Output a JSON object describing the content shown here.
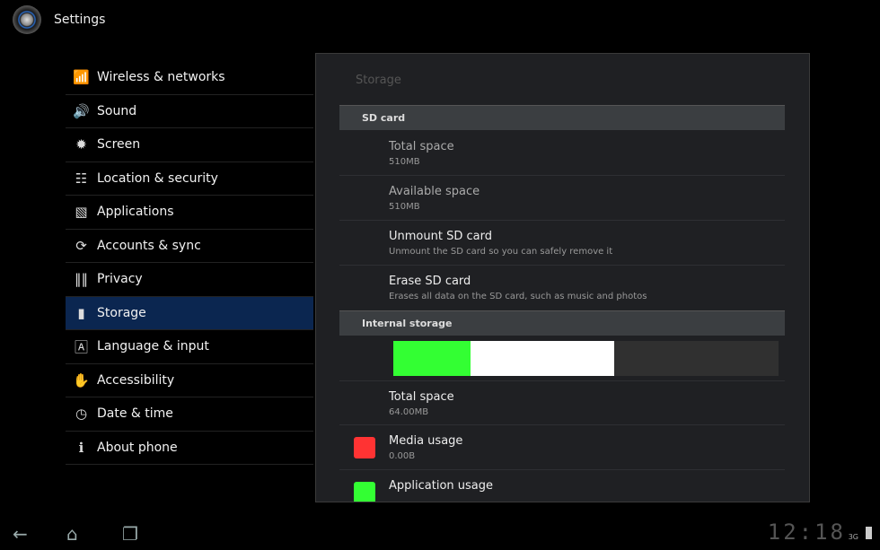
{
  "header": {
    "title": "Settings",
    "icon": "settings-icon"
  },
  "sidebar": {
    "items": [
      {
        "label": "Wireless & networks",
        "icon": "wifi-icon"
      },
      {
        "label": "Sound",
        "icon": "speaker-icon"
      },
      {
        "label": "Screen",
        "icon": "brightness-icon"
      },
      {
        "label": "Location & security",
        "icon": "location-grid-icon"
      },
      {
        "label": "Applications",
        "icon": "applications-icon"
      },
      {
        "label": "Accounts & sync",
        "icon": "sync-icon"
      },
      {
        "label": "Privacy",
        "icon": "privacy-icon"
      },
      {
        "label": "Storage",
        "icon": "sd-card-icon",
        "selected": true
      },
      {
        "label": "Language & input",
        "icon": "keyboard-a-icon"
      },
      {
        "label": "Accessibility",
        "icon": "hand-icon"
      },
      {
        "label": "Date & time",
        "icon": "clock-icon"
      },
      {
        "label": "About phone",
        "icon": "info-icon"
      }
    ]
  },
  "panel": {
    "title": "Storage",
    "sd_header": "SD card",
    "sd_items": [
      {
        "title": "Total space",
        "summary": "510MB"
      },
      {
        "title": "Available space",
        "summary": "510MB"
      },
      {
        "title": "Unmount SD card",
        "summary": "Unmount the SD card so you can safely remove it"
      },
      {
        "title": "Erase SD card",
        "summary": "Erases all data on the SD card, such as music and photos"
      }
    ],
    "internal_header": "Internal storage",
    "usage_bar": {
      "segments": [
        {
          "color": "#33ff33",
          "fraction": 0.2
        },
        {
          "color": "#ffffff",
          "fraction": 0.373
        }
      ],
      "remainder_color": "#303030"
    },
    "internal_items": [
      {
        "title": "Total space",
        "summary": "64.00MB"
      },
      {
        "title": "Media usage",
        "summary": "0.00B",
        "color": "#ff3333"
      },
      {
        "title": "Application usage",
        "color": "#33ff33"
      }
    ]
  },
  "status_bar": {
    "clock": "12:18",
    "network": "3G"
  }
}
